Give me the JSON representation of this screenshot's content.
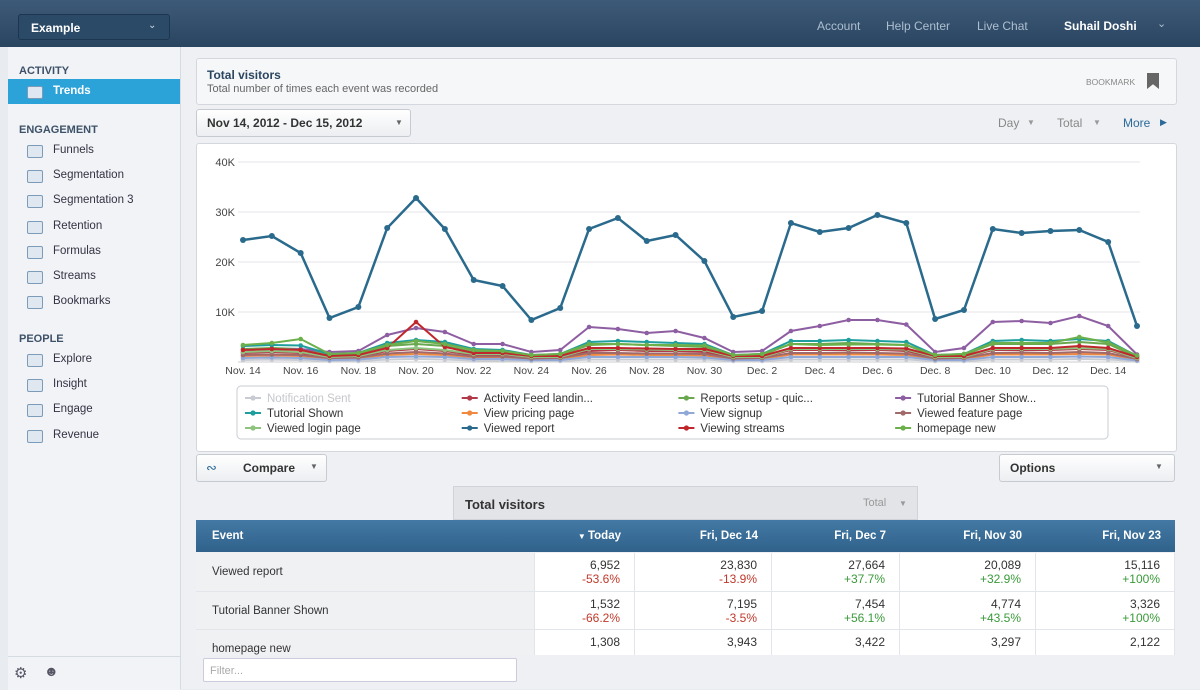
{
  "header": {
    "app": "Example",
    "links": [
      "Account",
      "Help Center",
      "Live Chat"
    ],
    "user": "Suhail Doshi"
  },
  "sidebar": {
    "sections": [
      {
        "title": "ACTIVITY",
        "items": [
          "Trends"
        ]
      },
      {
        "title": "ENGAGEMENT",
        "items": [
          "Funnels",
          "Segmentation",
          "Segmentation 3",
          "Retention",
          "Formulas",
          "Streams",
          "Bookmarks"
        ]
      },
      {
        "title": "PEOPLE",
        "items": [
          "Explore",
          "Insight",
          "Engage",
          "Revenue"
        ]
      }
    ]
  },
  "report": {
    "title": "Total visitors",
    "subtitle": "Total number of times each event was recorded",
    "bookmark": "BOOKMARK",
    "date_range": "Nov 14, 2012 - Dec 15, 2012",
    "controls": [
      "Day",
      "Total",
      "More"
    ],
    "compare": "Compare",
    "options": "Options",
    "filter_placeholder": "Filter..."
  },
  "chart_data": {
    "type": "line",
    "categories": [
      "Nov. 14",
      null,
      "Nov. 16",
      null,
      "Nov. 18",
      null,
      "Nov. 20",
      null,
      "Nov. 22",
      null,
      "Nov. 24",
      null,
      "Nov. 26",
      null,
      "Nov. 28",
      null,
      "Nov. 30",
      null,
      "Dec. 2",
      null,
      "Dec. 4",
      null,
      "Dec. 6",
      null,
      "Dec. 8",
      null,
      "Dec. 10",
      null,
      "Dec. 12",
      null,
      "Dec. 14",
      null
    ],
    "ylim": [
      0,
      40000
    ],
    "yticks": [
      {
        "value": 10000,
        "label": "10K"
      },
      {
        "value": 20000,
        "label": "20K"
      },
      {
        "value": 30000,
        "label": "30K"
      },
      {
        "value": 40000,
        "label": "40K"
      }
    ],
    "grid": true,
    "series": [
      {
        "name": "Notification Sent",
        "color": "#c9cbd3",
        "values": [
          400,
          500,
          400,
          200,
          200,
          500,
          600,
          500,
          300,
          300,
          200,
          200,
          500,
          500,
          500,
          500,
          500,
          200,
          200,
          500,
          500,
          500,
          500,
          500,
          200,
          200,
          500,
          500,
          500,
          600,
          500,
          200
        ]
      },
      {
        "name": "Activity Feed landin...",
        "color": "#b23a48",
        "values": [
          1800,
          2000,
          1800,
          1000,
          1000,
          2200,
          2600,
          2200,
          1400,
          1400,
          900,
          1000,
          2200,
          2400,
          2200,
          2200,
          2000,
          900,
          1000,
          2400,
          2400,
          2400,
          2400,
          2200,
          900,
          1000,
          2400,
          2400,
          2400,
          2600,
          2400,
          800
        ]
      },
      {
        "name": "Reports setup - quic...",
        "color": "#6aa84f",
        "values": [
          2600,
          2800,
          2600,
          1400,
          1600,
          3200,
          3600,
          3200,
          2000,
          2000,
          1200,
          1400,
          3400,
          3600,
          3400,
          3200,
          3000,
          1200,
          1400,
          3600,
          3600,
          3800,
          3600,
          3400,
          1200,
          1400,
          3600,
          3600,
          3600,
          4000,
          3600,
          1000
        ]
      },
      {
        "name": "Tutorial Banner Show...",
        "color": "#8e5ea2",
        "values": [
          2000,
          2400,
          2600,
          2000,
          2200,
          5400,
          6800,
          6000,
          3600,
          3600,
          2000,
          2400,
          7000,
          6600,
          5800,
          6200,
          4800,
          2000,
          2200,
          6200,
          7200,
          8400,
          8400,
          7500,
          2000,
          2800,
          8000,
          8200,
          7800,
          9200,
          7200,
          1500
        ]
      },
      {
        "name": "Tutorial Shown",
        "color": "#1f9e9e",
        "values": [
          3200,
          3400,
          3300,
          1600,
          1800,
          3800,
          4400,
          4000,
          2600,
          2400,
          1400,
          1600,
          4000,
          4200,
          4000,
          3800,
          3600,
          1400,
          1600,
          4200,
          4200,
          4400,
          4200,
          4000,
          1400,
          1600,
          4200,
          4400,
          4200,
          4600,
          4200,
          1200
        ]
      },
      {
        "name": "View pricing page",
        "color": "#f0883e",
        "values": [
          1200,
          1300,
          1200,
          600,
          700,
          1400,
          1600,
          1400,
          900,
          900,
          600,
          600,
          1400,
          1500,
          1400,
          1400,
          1300,
          600,
          600,
          1500,
          1500,
          1500,
          1500,
          1400,
          600,
          600,
          1500,
          1500,
          1500,
          1600,
          1500,
          500
        ]
      },
      {
        "name": "View signup",
        "color": "#8fa8d8",
        "values": [
          800,
          900,
          800,
          400,
          500,
          1000,
          1100,
          1000,
          600,
          600,
          400,
          400,
          1000,
          1000,
          1000,
          1000,
          900,
          400,
          400,
          1000,
          1000,
          1000,
          1000,
          1000,
          400,
          400,
          1000,
          1000,
          1000,
          1100,
          1000,
          300
        ]
      },
      {
        "name": "Viewed feature page",
        "color": "#a06a6a",
        "values": [
          1400,
          1500,
          1400,
          800,
          900,
          1700,
          2000,
          1700,
          1100,
          1100,
          700,
          800,
          1800,
          1800,
          1700,
          1700,
          1600,
          700,
          800,
          1800,
          1800,
          1900,
          1800,
          1700,
          700,
          800,
          1800,
          1900,
          1800,
          2000,
          1800,
          600
        ]
      },
      {
        "name": "Viewed login page",
        "color": "#8fc47f",
        "values": [
          2000,
          2200,
          2000,
          1000,
          1200,
          2400,
          2800,
          2400,
          1600,
          1600,
          1000,
          1000,
          2600,
          2600,
          2500,
          2400,
          2400,
          1000,
          1000,
          2600,
          2600,
          2600,
          2600,
          2500,
          1000,
          1000,
          2600,
          2600,
          2600,
          2800,
          2600,
          800
        ]
      },
      {
        "name": "Viewed report",
        "color": "#2a6a8c",
        "values": [
          24400,
          25200,
          21800,
          8800,
          11000,
          26800,
          32800,
          26600,
          16400,
          15200,
          8400,
          10800,
          26600,
          28800,
          24200,
          25400,
          20200,
          9000,
          10200,
          27800,
          26000,
          26800,
          29400,
          27800,
          8600,
          10400,
          26600,
          25800,
          26200,
          26400,
          24000,
          7200
        ]
      },
      {
        "name": "Viewing streams",
        "color": "#c0272d",
        "values": [
          2400,
          2600,
          2400,
          1200,
          1400,
          2800,
          8000,
          3000,
          1800,
          1800,
          1200,
          1200,
          2800,
          2800,
          2700,
          2600,
          2600,
          1200,
          1200,
          2800,
          2800,
          2800,
          2800,
          2700,
          1200,
          1200,
          2800,
          2800,
          2800,
          3200,
          2800,
          1000
        ]
      },
      {
        "name": "homepage new",
        "color": "#6bb04a",
        "values": [
          3400,
          3800,
          4600,
          1600,
          1800,
          3400,
          4200,
          3600,
          2400,
          2200,
          1400,
          1600,
          3600,
          3600,
          3400,
          3400,
          3300,
          1400,
          1600,
          3600,
          3400,
          3500,
          3500,
          3400,
          1400,
          1600,
          3800,
          3800,
          3800,
          5000,
          3900,
          1300
        ]
      }
    ]
  },
  "table": {
    "title": "Total visitors",
    "mode": "Total",
    "columns": [
      "Event",
      "Today",
      "Fri, Dec 14",
      "Fri, Dec 7",
      "Fri, Nov 30",
      "Fri, Nov 23"
    ],
    "rows": [
      {
        "event": "Viewed report",
        "cells": [
          {
            "value": "6,952",
            "change": "-53.6%"
          },
          {
            "value": "23,830",
            "change": "-13.9%"
          },
          {
            "value": "27,664",
            "change": "+37.7%"
          },
          {
            "value": "20,089",
            "change": "+32.9%"
          },
          {
            "value": "15,116",
            "change": "+100%"
          }
        ]
      },
      {
        "event": "Tutorial Banner Shown",
        "cells": [
          {
            "value": "1,532",
            "change": "-66.2%"
          },
          {
            "value": "7,195",
            "change": "-3.5%"
          },
          {
            "value": "7,454",
            "change": "+56.1%"
          },
          {
            "value": "4,774",
            "change": "+43.5%"
          },
          {
            "value": "3,326",
            "change": "+100%"
          }
        ]
      },
      {
        "event": "homepage new",
        "cells": [
          {
            "value": "1,308"
          },
          {
            "value": "3,943"
          },
          {
            "value": "3,422"
          },
          {
            "value": "3,297"
          },
          {
            "value": "2,122"
          }
        ]
      }
    ]
  }
}
